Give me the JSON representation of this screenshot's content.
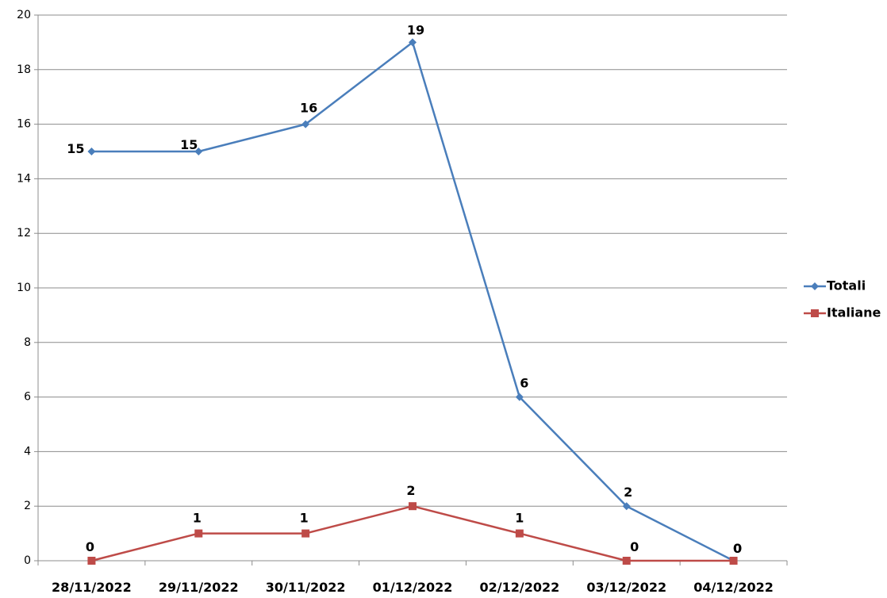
{
  "chart_data": {
    "type": "line",
    "categories": [
      "28/11/2022",
      "29/11/2022",
      "30/11/2022",
      "01/12/2022",
      "02/12/2022",
      "03/12/2022",
      "04/12/2022"
    ],
    "series": [
      {
        "name": "Totali",
        "values": [
          15,
          15,
          16,
          19,
          6,
          2,
          0
        ],
        "color": "#4a7ebb",
        "marker": "diamond"
      },
      {
        "name": "Italiane",
        "values": [
          0,
          1,
          1,
          2,
          1,
          0,
          0
        ],
        "color": "#be4b48",
        "marker": "square"
      }
    ],
    "ylim": [
      0,
      20
    ],
    "yticks": [
      0,
      2,
      4,
      6,
      8,
      10,
      12,
      14,
      16,
      18,
      20
    ],
    "grid": true,
    "legend": "right",
    "data_labels": true
  }
}
